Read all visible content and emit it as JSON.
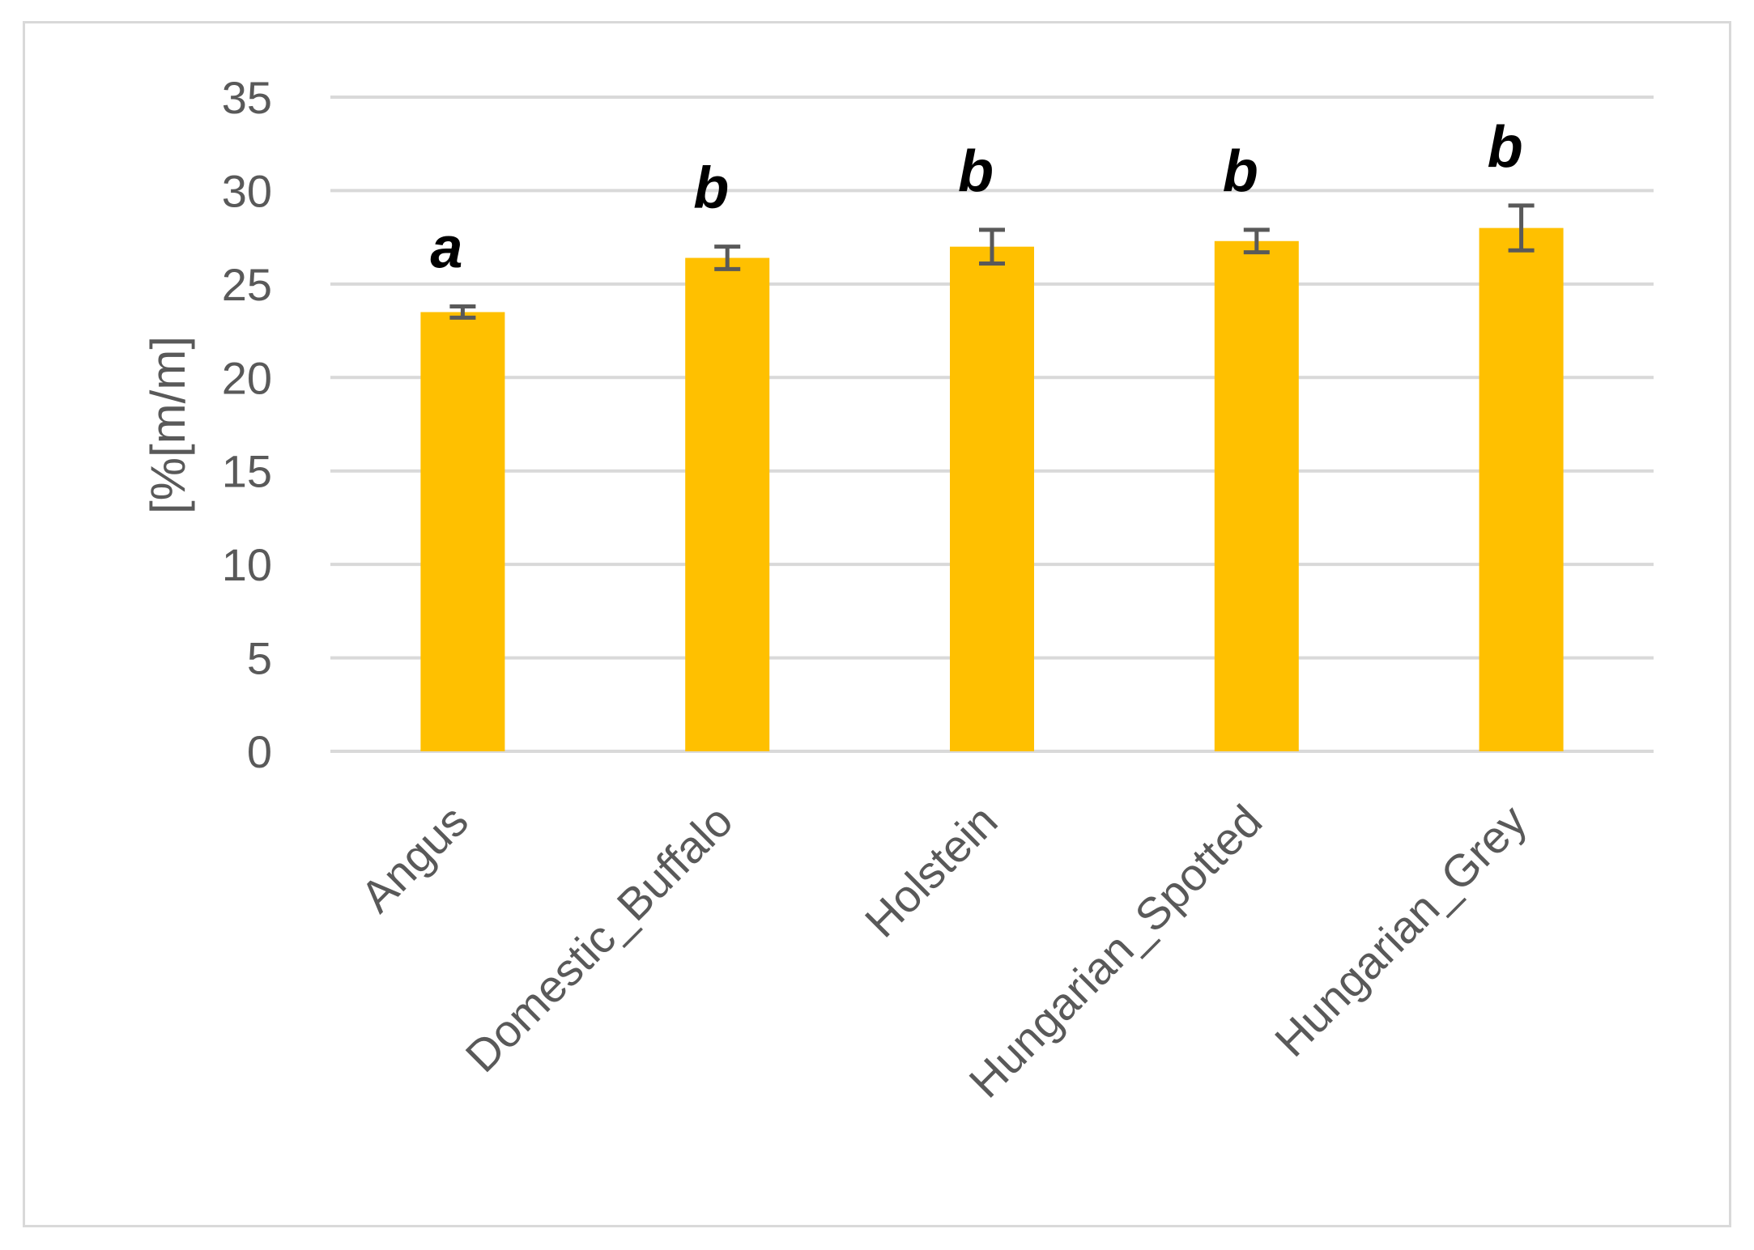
{
  "chart_data": {
    "type": "bar",
    "ylabel": "[%[m/m]",
    "ylim": [
      0,
      35
    ],
    "yticks": [
      0,
      5,
      10,
      15,
      20,
      25,
      30,
      35
    ],
    "grid": true,
    "categories": [
      "Angus",
      "Domestic_Buffalo",
      "Holstein",
      "Hungarian_Spotted",
      "Hungarian_Grey"
    ],
    "values": [
      23.5,
      26.4,
      27.0,
      27.3,
      28.0
    ],
    "error": [
      0.3,
      0.6,
      0.9,
      0.6,
      1.2
    ],
    "annotations": [
      "a",
      "b",
      "b",
      "b",
      "b"
    ],
    "colors": {
      "bar": "#FFC000",
      "error": "#595959",
      "grid": "#d9d9d9"
    }
  }
}
